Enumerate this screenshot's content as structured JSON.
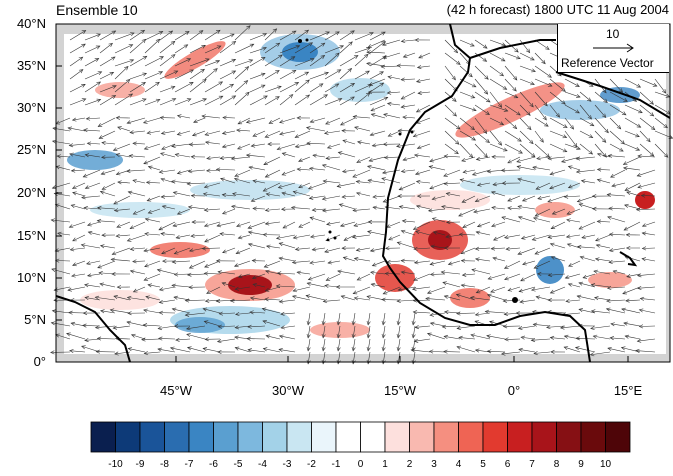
{
  "title_left": "Ensemble 10",
  "title_right": "(42 h forecast) 1800 UTC 11 Aug 2004",
  "lat_labels": [
    "40°N",
    "35°N",
    "30°N",
    "25°N",
    "20°N",
    "15°N",
    "10°N",
    "5°N",
    "0°"
  ],
  "lon_labels": [
    "45°W",
    "30°W",
    "15°W",
    "0°",
    "15°E"
  ],
  "reference_vector": {
    "magnitude": "10",
    "label": "Reference Vector"
  },
  "colorbar": {
    "labels": [
      "-10",
      "-9",
      "-8",
      "-7",
      "-6",
      "-5",
      "-4",
      "-3",
      "-2",
      "-1",
      "0",
      "1",
      "2",
      "3",
      "4",
      "5",
      "6",
      "7",
      "8",
      "9",
      "10"
    ],
    "colors": [
      "#0a1f4f",
      "#0d3a78",
      "#1a5499",
      "#2a6db0",
      "#3a85c3",
      "#5a9fd0",
      "#7db8de",
      "#a3d2e8",
      "#c9e6f2",
      "#eaf5fb",
      "#ffffff",
      "#ffffff",
      "#fde0dd",
      "#f9b9b0",
      "#f58f80",
      "#ef6454",
      "#e23a2f",
      "#c81f20",
      "#a8141a",
      "#861014",
      "#6a0a0c",
      "#4e0508"
    ]
  },
  "colors": {
    "land": "#ffffff",
    "outside": "#d3d3d3",
    "coast": "#000000"
  }
}
